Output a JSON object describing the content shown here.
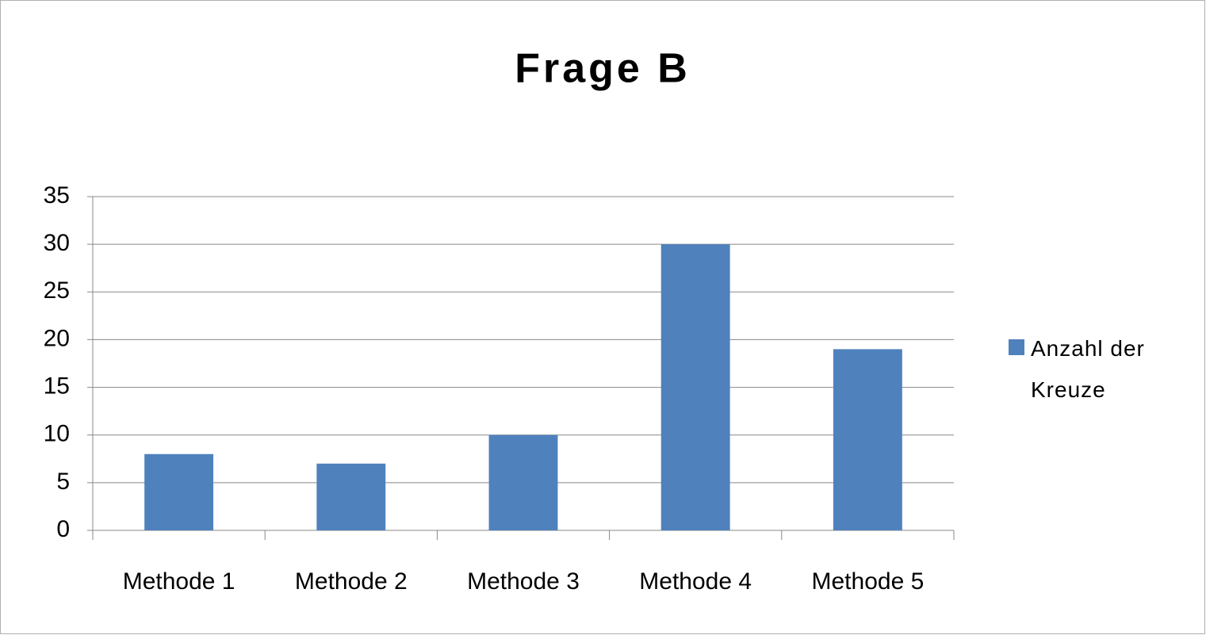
{
  "chart_data": {
    "type": "bar",
    "title": "Frage B",
    "categories": [
      "Methode 1",
      "Methode 2",
      "Methode 3",
      "Methode 4",
      "Methode 5"
    ],
    "series": [
      {
        "name": "Anzahl der Kreuze",
        "color": "#4f81bd",
        "values": [
          8,
          7,
          10,
          30,
          19
        ]
      }
    ],
    "ylim": [
      0,
      35
    ],
    "yticks": [
      0,
      5,
      10,
      15,
      20,
      25,
      30,
      35
    ],
    "grid": true,
    "legend": "right"
  }
}
